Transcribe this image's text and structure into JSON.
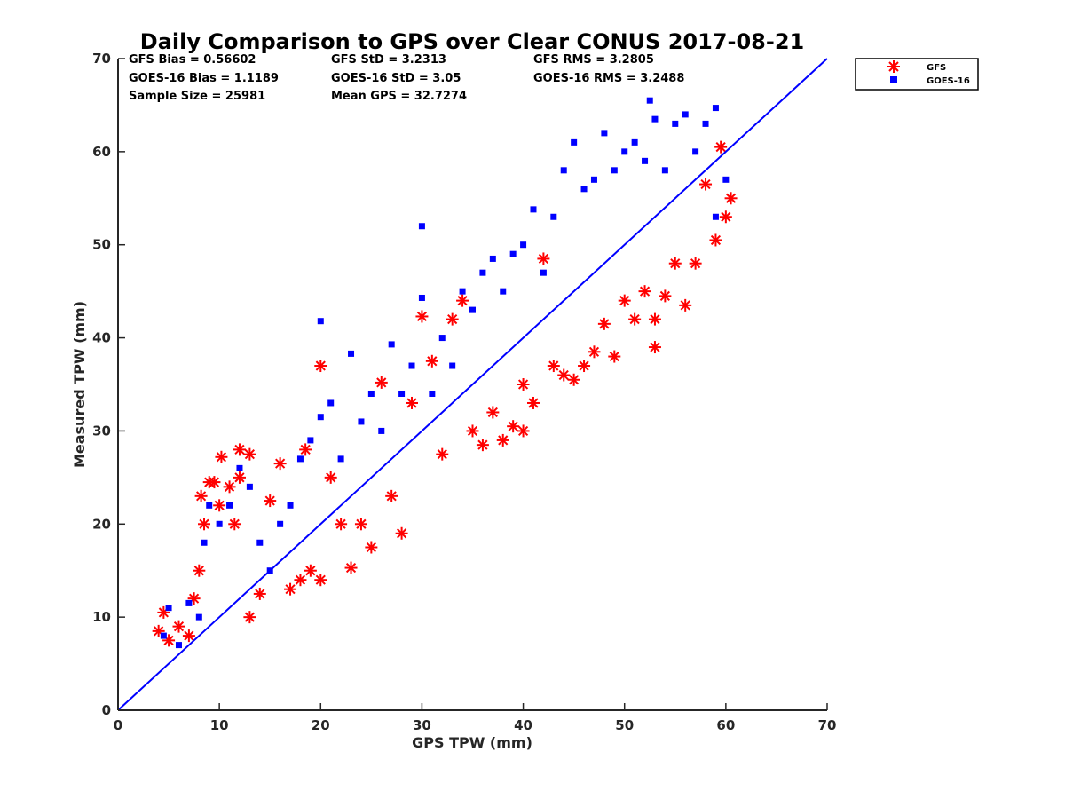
{
  "chart_data": {
    "type": "scatter",
    "title": "Daily Comparison to GPS over Clear CONUS 2017-08-21",
    "xlabel": "GPS TPW (mm)",
    "ylabel": "Measured TPW (mm)",
    "xlim": [
      0,
      70
    ],
    "ylim": [
      0,
      70
    ],
    "xticks": [
      0,
      10,
      20,
      30,
      40,
      50,
      60,
      70
    ],
    "yticks": [
      0,
      10,
      20,
      30,
      40,
      50,
      60,
      70
    ],
    "grid": false,
    "legend_position": "outside-top-right",
    "reference_line": {
      "name": "1:1 line",
      "x": [
        0,
        70
      ],
      "y": [
        0,
        70
      ],
      "color": "#0000ff"
    },
    "stats": {
      "gfs_bias": "GFS Bias = 0.56602",
      "gfs_std": "GFS StD = 3.2313",
      "gfs_rms": "GFS RMS = 3.2805",
      "goes_bias": "GOES-16 Bias = 1.1189",
      "goes_std": "GOES-16 StD = 3.05",
      "goes_rms": "GOES-16 RMS = 3.2488",
      "sample_size": "Sample Size = 25981",
      "mean_gps": "Mean GPS = 32.7274"
    },
    "series": [
      {
        "name": "GFS",
        "marker": "asterisk",
        "color": "#ff0000",
        "points": [
          [
            4,
            8.5
          ],
          [
            4.5,
            10.5
          ],
          [
            5,
            7.5
          ],
          [
            6,
            9
          ],
          [
            7,
            8
          ],
          [
            7.5,
            12
          ],
          [
            8,
            15
          ],
          [
            8.2,
            23
          ],
          [
            8.5,
            20
          ],
          [
            9,
            24.5
          ],
          [
            9.5,
            24.5
          ],
          [
            10,
            22
          ],
          [
            10.2,
            27.2
          ],
          [
            11,
            24
          ],
          [
            11.5,
            20
          ],
          [
            12,
            28
          ],
          [
            12,
            25
          ],
          [
            13,
            27.5
          ],
          [
            13,
            10
          ],
          [
            14,
            12.5
          ],
          [
            15,
            22.5
          ],
          [
            16,
            26.5
          ],
          [
            17,
            13
          ],
          [
            18,
            14
          ],
          [
            18.5,
            28
          ],
          [
            19,
            15
          ],
          [
            20,
            14
          ],
          [
            20,
            37
          ],
          [
            21,
            25
          ],
          [
            22,
            20
          ],
          [
            23,
            15.3
          ],
          [
            24,
            20
          ],
          [
            25,
            17.5
          ],
          [
            26,
            35.2
          ],
          [
            27,
            23
          ],
          [
            28,
            19
          ],
          [
            29,
            33
          ],
          [
            30,
            42.3
          ],
          [
            31,
            37.5
          ],
          [
            32,
            27.5
          ],
          [
            33,
            42
          ],
          [
            34,
            44
          ],
          [
            35,
            30
          ],
          [
            36,
            28.5
          ],
          [
            37,
            32
          ],
          [
            38,
            29
          ],
          [
            39,
            30.5
          ],
          [
            40,
            35
          ],
          [
            40,
            30
          ],
          [
            41,
            33
          ],
          [
            42,
            48.5
          ],
          [
            43,
            37
          ],
          [
            44,
            36
          ],
          [
            45,
            35.5
          ],
          [
            46,
            37
          ],
          [
            47,
            38.5
          ],
          [
            48,
            41.5
          ],
          [
            49,
            38
          ],
          [
            50,
            44
          ],
          [
            51,
            42
          ],
          [
            52,
            45
          ],
          [
            53,
            42
          ],
          [
            53,
            39
          ],
          [
            54,
            44.5
          ],
          [
            55,
            48
          ],
          [
            56,
            43.5
          ],
          [
            57,
            48
          ],
          [
            58,
            56.5
          ],
          [
            59,
            50.5
          ],
          [
            60,
            53
          ],
          [
            60.5,
            55
          ],
          [
            59.5,
            60.5
          ]
        ]
      },
      {
        "name": "GOES-16",
        "marker": "square",
        "color": "#0000ff",
        "points": [
          [
            4.5,
            8
          ],
          [
            5,
            11
          ],
          [
            6,
            7
          ],
          [
            7,
            11.5
          ],
          [
            8,
            10
          ],
          [
            8.5,
            18
          ],
          [
            9,
            22
          ],
          [
            10,
            20
          ],
          [
            11,
            22
          ],
          [
            12,
            26
          ],
          [
            13,
            24
          ],
          [
            14,
            18
          ],
          [
            15,
            15
          ],
          [
            16,
            20
          ],
          [
            17,
            22
          ],
          [
            18,
            27
          ],
          [
            19,
            29
          ],
          [
            20,
            31.5
          ],
          [
            20,
            41.8
          ],
          [
            21,
            33
          ],
          [
            22,
            27
          ],
          [
            23,
            38.3
          ],
          [
            24,
            31
          ],
          [
            25,
            34
          ],
          [
            26,
            30
          ],
          [
            27,
            39.3
          ],
          [
            28,
            34
          ],
          [
            29,
            37
          ],
          [
            30,
            44.3
          ],
          [
            30,
            52
          ],
          [
            31,
            34
          ],
          [
            32,
            40
          ],
          [
            33,
            37
          ],
          [
            34,
            45
          ],
          [
            35,
            43
          ],
          [
            36,
            47
          ],
          [
            37,
            48.5
          ],
          [
            38,
            45
          ],
          [
            39,
            49
          ],
          [
            40,
            50
          ],
          [
            41,
            53.8
          ],
          [
            42,
            47
          ],
          [
            43,
            53
          ],
          [
            44,
            58
          ],
          [
            45,
            61
          ],
          [
            46,
            56
          ],
          [
            47,
            57
          ],
          [
            48,
            62
          ],
          [
            49,
            58
          ],
          [
            50,
            60
          ],
          [
            51,
            61
          ],
          [
            52,
            59
          ],
          [
            52.5,
            65.5
          ],
          [
            53,
            63.5
          ],
          [
            54,
            58
          ],
          [
            55,
            63
          ],
          [
            56,
            64
          ],
          [
            57,
            60
          ],
          [
            58,
            63
          ],
          [
            59,
            64.7
          ],
          [
            59,
            53
          ],
          [
            60,
            57
          ]
        ]
      }
    ]
  }
}
